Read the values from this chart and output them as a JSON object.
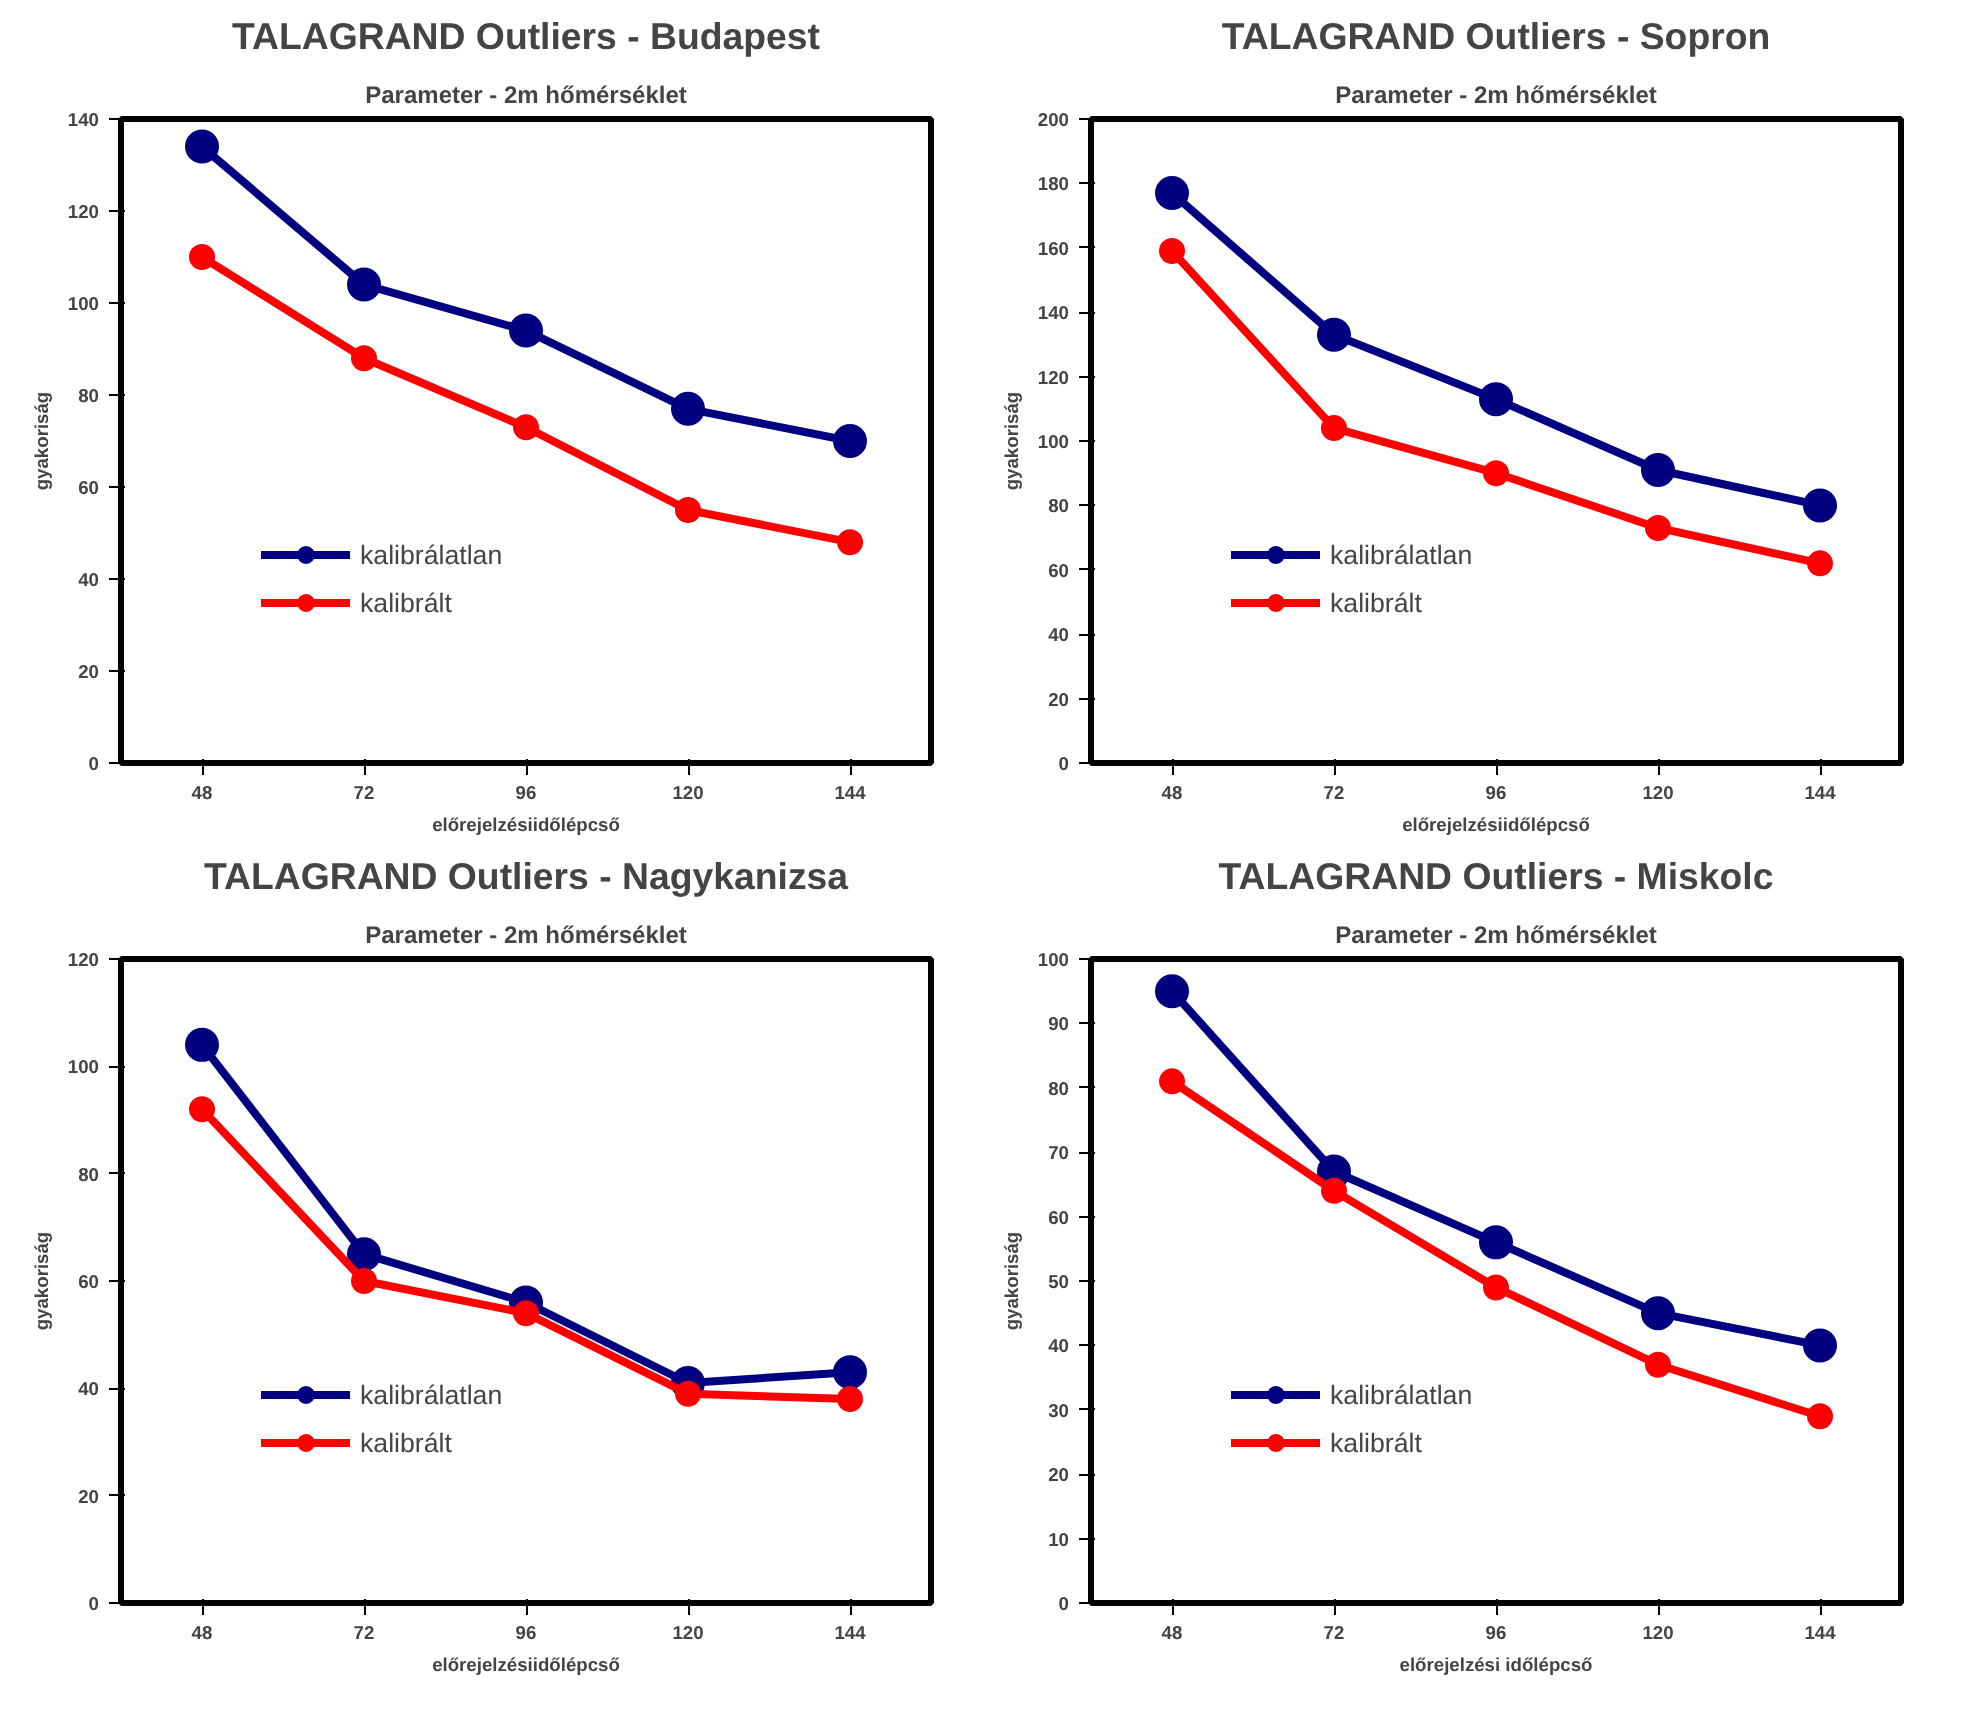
{
  "chart_data": [
    {
      "type": "line",
      "title": "TALAGRAND Outliers - Budapest",
      "subtitle": "Parameter - 2m hőmérséklet",
      "xlabel": "előrejelzésiidőlépcső",
      "ylabel": "gyakoriság",
      "categories": [
        "48",
        "72",
        "96",
        "120",
        "144"
      ],
      "ylim": [
        0,
        140
      ],
      "yticks": [
        0,
        20,
        40,
        60,
        80,
        100,
        120,
        140
      ],
      "grid": false,
      "legend": "bottom left",
      "marker": "circle",
      "line_style": "solid",
      "series": [
        {
          "name": "kalibrálatlan",
          "color": "#000080",
          "values": [
            134,
            104,
            94,
            77,
            70
          ]
        },
        {
          "name": "kalibrált",
          "color": "#ff0000",
          "values": [
            110,
            88,
            73,
            55,
            48
          ]
        }
      ]
    },
    {
      "type": "line",
      "title": "TALAGRAND Outliers - Sopron",
      "subtitle": "Parameter - 2m hőmérséklet",
      "xlabel": "előrejelzésiidőlépcső",
      "ylabel": "gyakoriság",
      "categories": [
        "48",
        "72",
        "96",
        "120",
        "144"
      ],
      "ylim": [
        0,
        200
      ],
      "yticks": [
        0,
        20,
        40,
        60,
        80,
        100,
        120,
        140,
        160,
        180,
        200
      ],
      "grid": false,
      "legend": "bottom left",
      "marker": "circle",
      "line_style": "solid",
      "series": [
        {
          "name": "kalibrálatlan",
          "color": "#000080",
          "values": [
            177,
            133,
            113,
            91,
            80
          ]
        },
        {
          "name": "kalibrált",
          "color": "#ff0000",
          "values": [
            159,
            104,
            90,
            73,
            62
          ]
        }
      ]
    },
    {
      "type": "line",
      "title": "TALAGRAND Outliers - Nagykanizsa",
      "subtitle": "Parameter - 2m hőmérséklet",
      "xlabel": "előrejelzésiidőlépcső",
      "ylabel": "gyakoriság",
      "categories": [
        "48",
        "72",
        "96",
        "120",
        "144"
      ],
      "ylim": [
        0,
        120
      ],
      "yticks": [
        0,
        20,
        40,
        60,
        80,
        100,
        120
      ],
      "grid": false,
      "legend": "bottom left",
      "marker": "circle",
      "line_style": "solid",
      "series": [
        {
          "name": "kalibrálatlan",
          "color": "#000080",
          "values": [
            104,
            65,
            56,
            41,
            43
          ]
        },
        {
          "name": "kalibrált",
          "color": "#ff0000",
          "values": [
            92,
            60,
            54,
            39,
            38
          ]
        }
      ]
    },
    {
      "type": "line",
      "title": "TALAGRAND Outliers - Miskolc",
      "subtitle": "Parameter - 2m hőmérséklet",
      "xlabel": "előrejelzési időlépcső",
      "ylabel": "gyakoriság",
      "categories": [
        "48",
        "72",
        "96",
        "120",
        "144"
      ],
      "ylim": [
        0,
        100
      ],
      "yticks": [
        0,
        10,
        20,
        30,
        40,
        50,
        60,
        70,
        80,
        90,
        100
      ],
      "grid": false,
      "legend": "bottom left",
      "marker": "circle",
      "line_style": "solid",
      "series": [
        {
          "name": "kalibrálatlan",
          "color": "#000080",
          "values": [
            95,
            67,
            56,
            45,
            40
          ]
        },
        {
          "name": "kalibrált",
          "color": "#ff0000",
          "values": [
            81,
            64,
            49,
            37,
            29
          ]
        }
      ]
    }
  ]
}
